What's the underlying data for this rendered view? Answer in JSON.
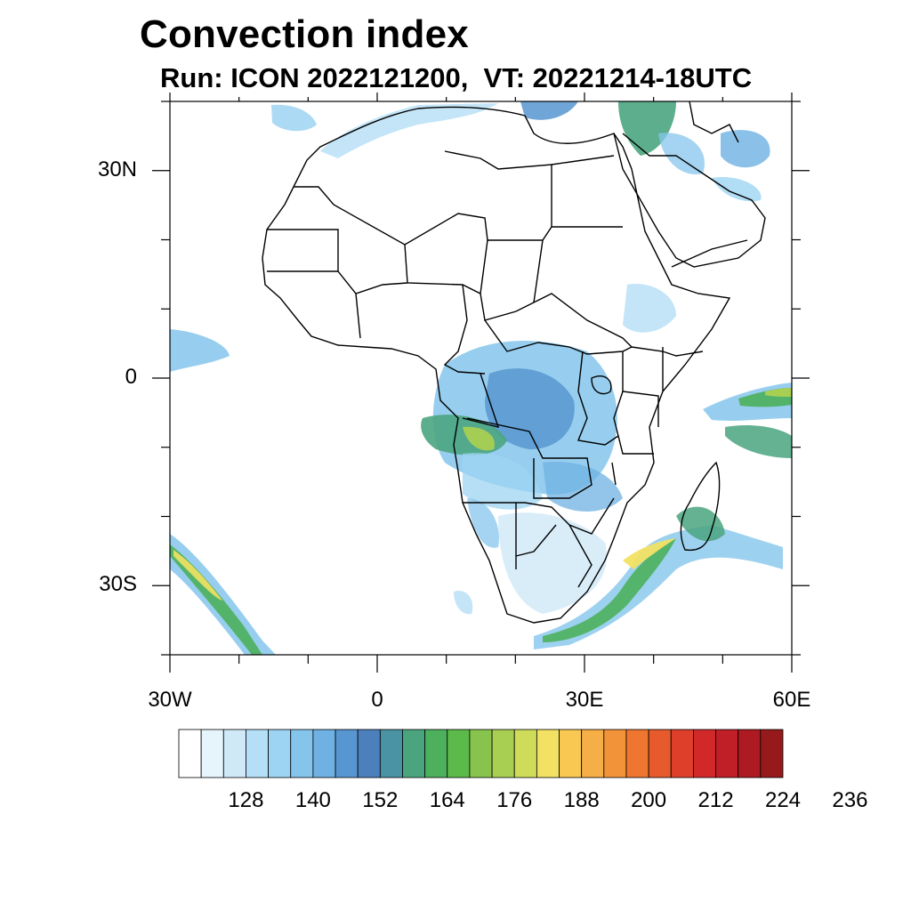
{
  "title": "Convection index",
  "subtitle": "Run: ICON 2022121200,  VT: 20221214-18UTC",
  "map": {
    "lon_range": [
      -30,
      60
    ],
    "lat_range": [
      -40,
      40
    ],
    "lat_ticks": [
      {
        "value": 30,
        "label": "30N"
      },
      {
        "value": 0,
        "label": "0"
      },
      {
        "value": -30,
        "label": "30S"
      }
    ],
    "lon_ticks": [
      {
        "value": -30,
        "label": "30W"
      },
      {
        "value": 0,
        "label": "0"
      },
      {
        "value": 30,
        "label": "30E"
      },
      {
        "value": 60,
        "label": "60E"
      }
    ]
  },
  "colorbar": {
    "colors": [
      "#ffffff",
      "#e6f4fc",
      "#cfe9f8",
      "#b5dff6",
      "#9dd4f3",
      "#85c5ec",
      "#6eb1e2",
      "#5796d0",
      "#4c80bd",
      "#4a93a4",
      "#4aa57f",
      "#4cb05c",
      "#5cba4b",
      "#88c44d",
      "#a9cf52",
      "#cfdc5a",
      "#f2e163",
      "#f8c853",
      "#f6ae46",
      "#f39339",
      "#ee7630",
      "#e65a2c",
      "#dd3f2a",
      "#d1282a",
      "#c01f27",
      "#ad1a22",
      "#961a1c"
    ],
    "labels": [
      "128",
      "140",
      "152",
      "164",
      "176",
      "188",
      "200",
      "212",
      "224",
      "236"
    ]
  }
}
